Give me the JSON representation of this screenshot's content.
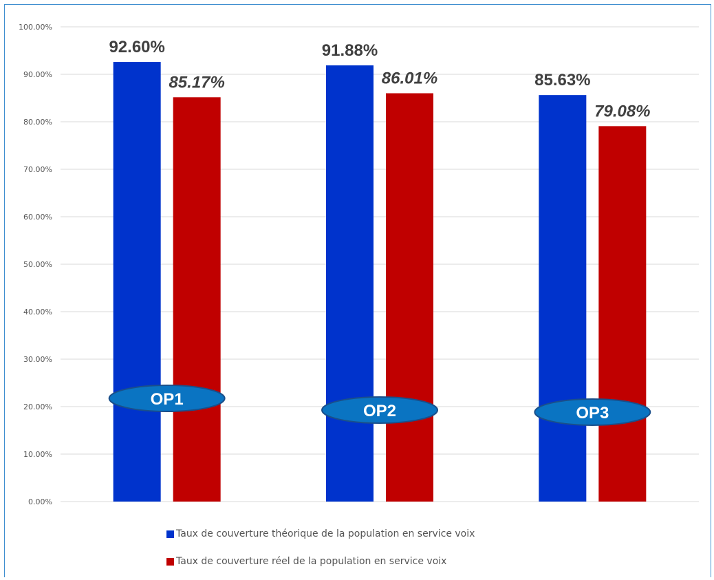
{
  "chart_data": {
    "type": "bar",
    "categories": [
      "OP1",
      "OP2",
      "OP3"
    ],
    "series": [
      {
        "name": "Taux de couverture théorique de la population en service voix",
        "values": [
          92.6,
          91.88,
          85.63
        ],
        "labels": [
          "92.60%",
          "91.88%",
          "85.63%"
        ],
        "color": "#0033cc"
      },
      {
        "name": "Taux de couverture réel de la population en service voix",
        "values": [
          85.17,
          86.01,
          79.08
        ],
        "labels": [
          "85.17%",
          "86.01%",
          "79.08%"
        ],
        "color": "#c00000"
      }
    ],
    "yticks": [
      "0.00%",
      "10.00%",
      "20.00%",
      "30.00%",
      "40.00%",
      "50.00%",
      "60.00%",
      "70.00%",
      "80.00%",
      "90.00%",
      "100.00%"
    ],
    "ylim": [
      0,
      100
    ],
    "grid": true,
    "legend_position": "bottom",
    "category_badge_color": "#0a74c2",
    "category_badge_border": "#1a4f8a"
  }
}
